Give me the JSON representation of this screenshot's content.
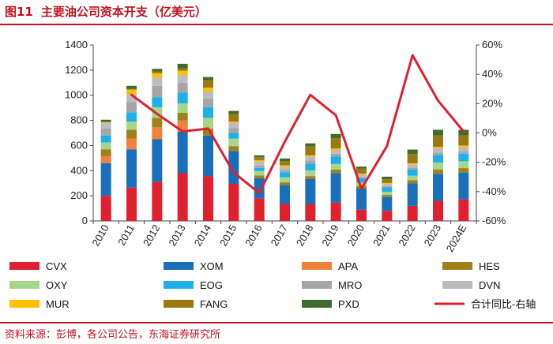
{
  "header": {
    "figure_number": "图11",
    "title": "主要油公司资本开支（亿美元）"
  },
  "footer": {
    "source": "资料来源：彭博，各公司公告，东海证券研究所"
  },
  "chart_data": {
    "type": "bar",
    "stacked": true,
    "categories": [
      "2010",
      "2011",
      "2012",
      "2013",
      "2014",
      "2015",
      "2016",
      "2017",
      "2018",
      "2019",
      "2020",
      "2021",
      "2022",
      "2023",
      "2024E"
    ],
    "y_left": {
      "min": 0,
      "max": 1400,
      "ticks": [
        0,
        200,
        400,
        600,
        800,
        1000,
        1200,
        1400
      ]
    },
    "y_right": {
      "min": -60,
      "max": 60,
      "ticks": [
        "-60%",
        "-40%",
        "-20%",
        "0%",
        "20%",
        "40%",
        "60%"
      ],
      "tick_values": [
        -60,
        -40,
        -20,
        0,
        20,
        40,
        60
      ]
    },
    "series": [
      {
        "name": "CVX",
        "color": "#e0202e",
        "values": [
          200,
          265,
          310,
          380,
          355,
          295,
          180,
          135,
          135,
          145,
          90,
          80,
          120,
          160,
          170
        ]
      },
      {
        "name": "XOM",
        "color": "#1a6fba",
        "values": [
          260,
          305,
          340,
          330,
          325,
          260,
          160,
          150,
          200,
          235,
          170,
          110,
          180,
          215,
          215
        ]
      },
      {
        "name": "APA",
        "color": "#f0813a",
        "values": [
          55,
          85,
          95,
          90,
          0,
          0,
          0,
          0,
          0,
          0,
          0,
          0,
          0,
          0,
          0
        ]
      },
      {
        "name": "HES",
        "color": "#a08018",
        "values": [
          55,
          70,
          75,
          60,
          55,
          40,
          22,
          22,
          22,
          28,
          18,
          17,
          25,
          35,
          35
        ]
      },
      {
        "name": "OXY",
        "color": "#a6d68a",
        "values": [
          55,
          65,
          85,
          75,
          85,
          60,
          35,
          40,
          45,
          45,
          27,
          25,
          35,
          55,
          55
        ]
      },
      {
        "name": "EOG",
        "color": "#1fb0ea",
        "values": [
          55,
          75,
          80,
          85,
          85,
          45,
          25,
          40,
          55,
          60,
          35,
          35,
          50,
          60,
          60
        ]
      },
      {
        "name": "MRO",
        "color": "#a6a6a6",
        "values": [
          55,
          80,
          90,
          80,
          70,
          40,
          20,
          20,
          25,
          22,
          10,
          10,
          15,
          20,
          20
        ]
      },
      {
        "name": "DVN",
        "color": "#bcbcbc",
        "values": [
          45,
          65,
          65,
          60,
          55,
          40,
          30,
          25,
          30,
          30,
          20,
          18,
          25,
          35,
          35
        ]
      },
      {
        "name": "MUR",
        "color": "#ffc000",
        "values": [
          5,
          35,
          35,
          35,
          30,
          10,
          10,
          10,
          10,
          12,
          7,
          7,
          8,
          10,
          10
        ]
      },
      {
        "name": "FANG",
        "color": "#9a7a10",
        "values": [
          5,
          5,
          15,
          20,
          60,
          60,
          25,
          35,
          70,
          80,
          40,
          30,
          75,
          90,
          80
        ]
      },
      {
        "name": "PXD",
        "color": "#3e6b2e",
        "values": [
          15,
          25,
          20,
          35,
          25,
          25,
          15,
          20,
          25,
          35,
          15,
          20,
          35,
          45,
          45
        ]
      }
    ],
    "line": {
      "name": "合计同比-右轴",
      "color": "#e0202e",
      "values": [
        null,
        26,
        13,
        1,
        3,
        -27,
        -41,
        -6,
        26,
        12,
        -38,
        -9,
        53,
        22,
        1
      ]
    }
  }
}
